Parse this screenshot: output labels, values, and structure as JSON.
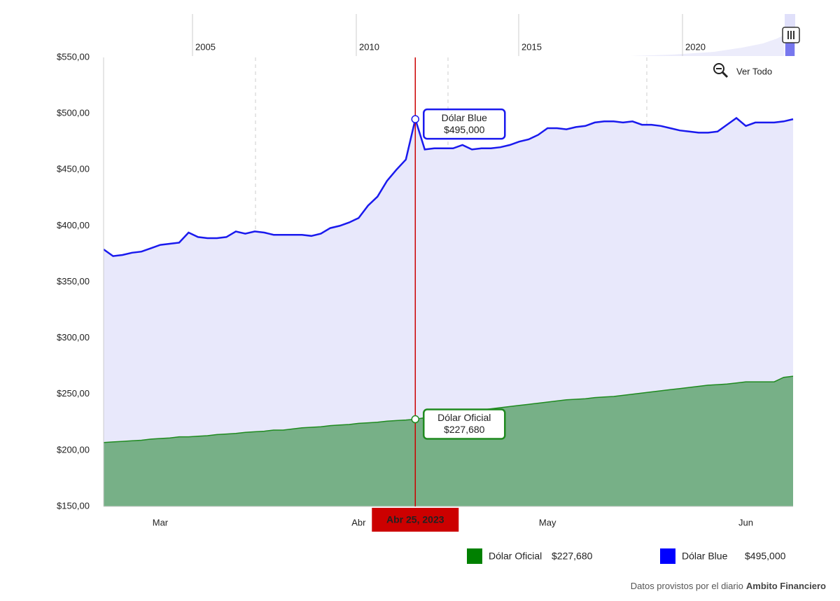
{
  "chart_data": {
    "type": "area",
    "categories": [
      null,
      null,
      null,
      null,
      null,
      null,
      "Mar",
      null,
      null,
      null,
      null,
      null,
      null,
      null,
      null,
      null,
      null,
      null,
      null,
      null,
      null,
      null,
      null,
      null,
      null,
      null,
      null,
      "Abr",
      null,
      null,
      null,
      null,
      null,
      "Abr 25, 2023",
      null,
      null,
      null,
      null,
      null,
      null,
      null,
      null,
      null,
      null,
      null,
      null,
      null,
      "May",
      null,
      null,
      null,
      null,
      null,
      null,
      null,
      null,
      null,
      null,
      null,
      null,
      null,
      null,
      null,
      null,
      null,
      null,
      null,
      null,
      "Jun",
      null,
      null,
      null,
      null,
      null
    ],
    "series": [
      {
        "name": "Dólar Oficial",
        "color": "#1f8a1f",
        "fill": "#77b087",
        "legend_color": "#008000",
        "values": [
          207,
          207.5,
          208,
          208.5,
          209,
          210,
          210.5,
          211,
          212,
          212,
          212.5,
          213,
          214,
          214.5,
          215,
          216,
          216.5,
          217,
          218,
          218,
          219,
          220,
          220.5,
          221,
          222,
          222.5,
          223,
          224,
          224.5,
          225,
          226,
          226.5,
          227,
          227.68,
          229,
          230,
          231,
          232,
          233.5,
          235,
          236,
          237,
          238,
          239,
          240,
          241,
          242,
          243,
          244,
          245,
          245.5,
          246,
          247,
          247.5,
          248,
          249,
          250,
          251,
          252,
          253,
          254,
          255,
          256,
          257,
          258,
          258.5,
          259,
          260,
          261,
          261,
          261,
          261,
          265,
          266
        ],
        "value_labels": [
          null,
          null,
          null,
          null,
          null,
          null,
          null,
          null,
          null,
          null,
          null,
          null,
          null,
          null,
          null,
          null,
          null,
          null,
          null,
          null,
          null,
          null,
          null,
          null,
          null,
          null,
          null,
          null,
          null,
          null,
          null,
          null,
          null,
          "$227,680",
          null,
          null,
          null,
          null,
          null,
          null,
          null,
          null,
          null,
          null,
          null,
          null,
          null,
          null,
          null,
          null,
          null,
          null,
          null,
          null,
          null,
          null,
          null,
          null,
          null,
          null,
          null,
          null,
          null,
          null,
          null,
          null,
          null,
          null,
          null,
          null,
          null,
          null,
          null,
          null
        ]
      },
      {
        "name": "Dólar Blue",
        "color": "#1a1aee",
        "fill": "#e8e8fb",
        "legend_color": "#0000ff",
        "values": [
          379,
          373,
          374,
          376,
          377,
          380,
          383,
          384,
          385,
          394,
          390,
          389,
          389,
          390,
          395,
          393,
          395,
          394,
          392,
          392,
          392,
          392,
          391,
          393,
          398,
          400,
          403,
          407,
          418,
          426,
          440,
          450,
          459,
          495,
          468,
          469,
          469,
          469,
          472,
          468,
          469,
          469,
          470,
          472,
          475,
          477,
          481,
          487,
          487,
          486,
          488,
          489,
          492,
          493,
          493,
          492,
          493,
          490,
          490,
          489,
          487,
          485,
          484,
          483,
          483,
          484,
          490,
          496,
          489,
          492,
          492,
          492,
          493,
          495
        ],
        "value_labels": [
          null,
          null,
          null,
          null,
          null,
          null,
          null,
          null,
          null,
          null,
          null,
          null,
          null,
          null,
          null,
          null,
          null,
          null,
          null,
          null,
          null,
          null,
          null,
          null,
          null,
          null,
          null,
          null,
          null,
          null,
          null,
          null,
          null,
          "$495,000",
          null,
          null,
          null,
          null,
          null,
          null,
          null,
          null,
          null,
          null,
          null,
          null,
          null,
          null,
          null,
          null,
          null,
          null,
          null,
          null,
          null,
          null,
          null,
          null,
          null,
          null,
          null,
          null,
          null,
          null,
          null,
          null,
          null,
          null,
          null,
          null,
          null,
          null,
          null,
          null
        ]
      }
    ],
    "ylim": [
      150,
      550
    ],
    "yticks": [
      {
        "value": 150,
        "label": "$150,00"
      },
      {
        "value": 200,
        "label": "$200,00"
      },
      {
        "value": 250,
        "label": "$250,00"
      },
      {
        "value": 300,
        "label": "$300,00"
      },
      {
        "value": 350,
        "label": "$350,00"
      },
      {
        "value": 400,
        "label": "$400,00"
      },
      {
        "value": 450,
        "label": "$450,00"
      },
      {
        "value": 500,
        "label": "$500,00"
      },
      {
        "value": 550,
        "label": "$550,00"
      }
    ],
    "grid": false,
    "crosshair_color": "#cc0000",
    "navigator_labels": [
      "2005",
      "2010",
      "2015",
      "2020"
    ],
    "reset_button": "Ver Todo",
    "footer": {
      "text": "Datos provistos por el diario",
      "source": "Ambito Financiero"
    }
  }
}
